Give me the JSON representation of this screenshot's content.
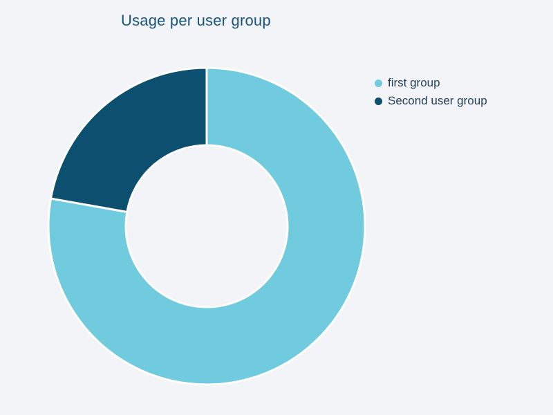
{
  "page": {
    "background_color": "#f2f4f7"
  },
  "chart_data": {
    "type": "pie",
    "title": "Usage per user group",
    "title_color": "#19547f",
    "donut_hole_ratio": 0.51,
    "start_angle_deg": 0,
    "direction": "clockwise",
    "grid": false,
    "legend_position": "top-right",
    "separator_color": "#ffffff",
    "units": "percent of total (no data labels shown on chart)",
    "series": [
      {
        "name": "first group",
        "value": 77.8,
        "color": "#6fcbdd"
      },
      {
        "name": "Second user group",
        "value": 22.2,
        "color": "#0d4f6f"
      }
    ]
  }
}
